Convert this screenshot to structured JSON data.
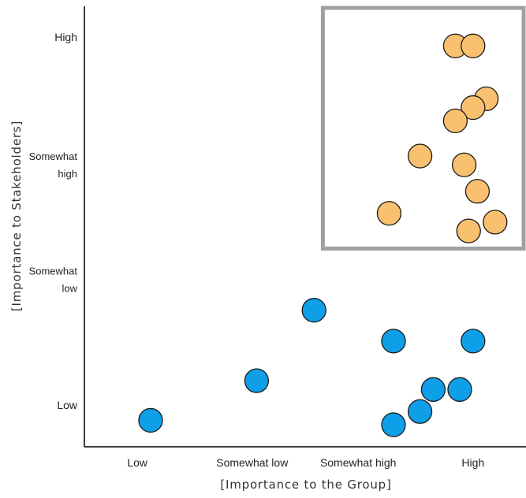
{
  "chart_data": {
    "type": "scatter",
    "xlabel": "[Importance to the Group]",
    "ylabel": "[Importance to Stakeholders]",
    "xlim": [
      0,
      100
    ],
    "ylim": [
      0,
      100
    ],
    "x_ticks": [
      {
        "label": "Low",
        "value": 12
      },
      {
        "label": "Somewhat low",
        "value": 38
      },
      {
        "label": "Somewhat high",
        "value": 62
      },
      {
        "label": "High",
        "value": 88
      }
    ],
    "y_ticks": [
      {
        "lines": [
          "Low"
        ],
        "value": 9.5
      },
      {
        "lines": [
          "Somewhat",
          "low"
        ],
        "value": 38
      },
      {
        "lines": [
          "Somewhat",
          "high"
        ],
        "value": 64
      },
      {
        "lines": [
          "High"
        ],
        "value": 93
      }
    ],
    "highlight_region": {
      "x": [
        54,
        100
      ],
      "y": [
        45,
        100
      ],
      "color": "#a0a0a0"
    },
    "series": [
      {
        "color": "#F9C06F",
        "points": [
          {
            "x": 84,
            "y": 91
          },
          {
            "x": 88,
            "y": 91
          },
          {
            "x": 91,
            "y": 79
          },
          {
            "x": 88,
            "y": 77
          },
          {
            "x": 84,
            "y": 74
          },
          {
            "x": 76,
            "y": 66
          },
          {
            "x": 86,
            "y": 64
          },
          {
            "x": 89,
            "y": 58
          },
          {
            "x": 69,
            "y": 53
          },
          {
            "x": 87,
            "y": 49
          },
          {
            "x": 93,
            "y": 51
          }
        ]
      },
      {
        "color": "#0E9FE8",
        "points": [
          {
            "x": 15,
            "y": 6
          },
          {
            "x": 39,
            "y": 15
          },
          {
            "x": 52,
            "y": 31
          },
          {
            "x": 70,
            "y": 24
          },
          {
            "x": 88,
            "y": 24
          },
          {
            "x": 79,
            "y": 13
          },
          {
            "x": 85,
            "y": 13
          },
          {
            "x": 76,
            "y": 8
          },
          {
            "x": 70,
            "y": 5
          }
        ]
      }
    ]
  }
}
